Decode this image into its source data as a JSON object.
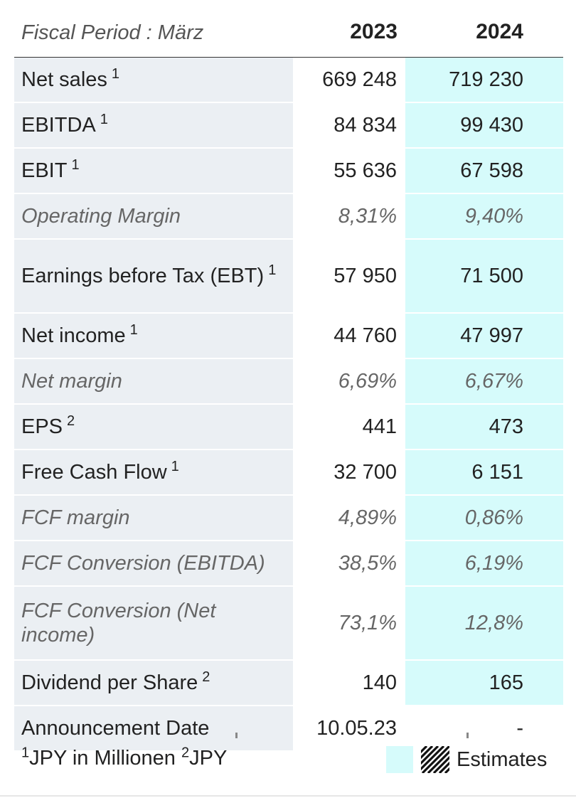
{
  "header": {
    "period": "Fiscal Period : März",
    "columns": [
      "2023",
      "2024"
    ]
  },
  "rows": [
    {
      "label": "Net sales",
      "sup": "1",
      "v2023": "669 248",
      "v2024": "719 230",
      "italic": false,
      "estimate": true
    },
    {
      "label": "EBITDA",
      "sup": "1",
      "v2023": "84 834",
      "v2024": "99 430",
      "italic": false,
      "estimate": true
    },
    {
      "label": "EBIT",
      "sup": "1",
      "v2023": "55 636",
      "v2024": "67 598",
      "italic": false,
      "estimate": true
    },
    {
      "label": "Operating Margin",
      "sup": "",
      "v2023": "8,31%",
      "v2024": "9,40%",
      "italic": true,
      "estimate": true
    },
    {
      "label": "Earnings before Tax (EBT)",
      "sup": "1",
      "v2023": "57 950",
      "v2024": "71 500",
      "italic": false,
      "estimate": true,
      "double": true
    },
    {
      "label": "Net income",
      "sup": "1",
      "v2023": "44 760",
      "v2024": "47 997",
      "italic": false,
      "estimate": true
    },
    {
      "label": "Net margin",
      "sup": "",
      "v2023": "6,69%",
      "v2024": "6,67%",
      "italic": true,
      "estimate": true
    },
    {
      "label": "EPS",
      "sup": "2",
      "v2023": "441",
      "v2024": "473",
      "italic": false,
      "estimate": true
    },
    {
      "label": "Free Cash Flow",
      "sup": "1",
      "v2023": "32 700",
      "v2024": "6 151",
      "italic": false,
      "estimate": true
    },
    {
      "label": "FCF margin",
      "sup": "",
      "v2023": "4,89%",
      "v2024": "0,86%",
      "italic": true,
      "estimate": true
    },
    {
      "label": "FCF Conversion (EBITDA)",
      "sup": "",
      "v2023": "38,5%",
      "v2024": "6,19%",
      "italic": true,
      "estimate": true
    },
    {
      "label": "FCF Conversion (Net income)",
      "sup": "",
      "v2023": "73,1%",
      "v2024": "12,8%",
      "italic": true,
      "estimate": true,
      "double": true
    },
    {
      "label": "Dividend per Share",
      "sup": "2",
      "v2023": "140",
      "v2024": "165",
      "italic": false,
      "estimate": true
    },
    {
      "label": "Announcement Date",
      "sup": "",
      "v2023": "10.05.23",
      "v2024": "-",
      "italic": false,
      "estimate": false
    }
  ],
  "footnote": {
    "sup1": "1",
    "text1": "JPY in Millionen ",
    "sup2": "2",
    "text2": "JPY"
  },
  "legend": {
    "label": "Estimates",
    "estimate_color": "#d6fbfb"
  }
}
